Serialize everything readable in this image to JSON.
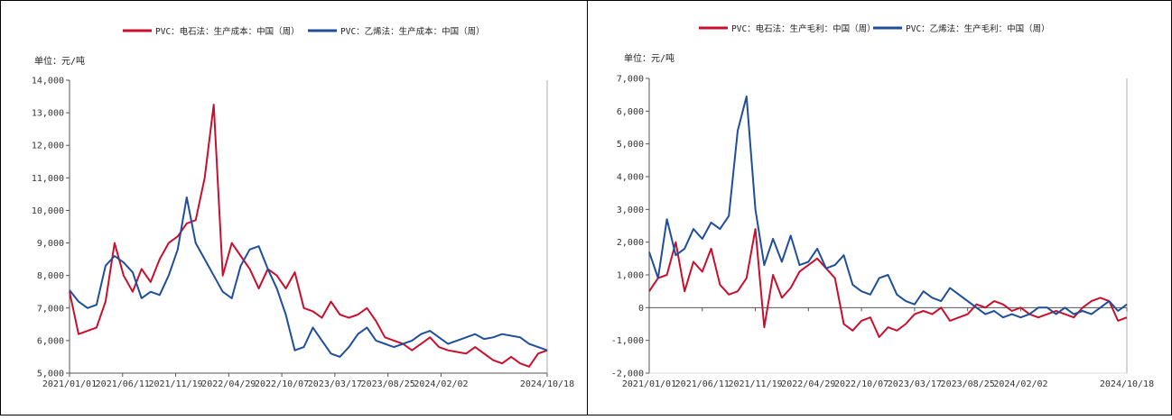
{
  "colors": {
    "red": "#C8102E",
    "blue": "#1F4E9A",
    "axis": "#555555"
  },
  "charts": [
    {
      "id": "left",
      "unit": "单位：元/吨",
      "chart_data": {
        "type": "line",
        "title": "",
        "xlabel": "",
        "ylabel": "单位：元/吨",
        "ylim": [
          5000,
          14000
        ],
        "y_ticks": [
          5000,
          6000,
          7000,
          8000,
          9000,
          10000,
          11000,
          12000,
          13000,
          14000
        ],
        "y_tick_labels": [
          "5,000",
          "6,000",
          "7,000",
          "8,000",
          "9,000",
          "10,000",
          "11,000",
          "12,000",
          "13,000",
          "14,000"
        ],
        "x_ticks": [
          "2021/01/01",
          "2021/06/11",
          "2021/11/19",
          "2022/04/29",
          "2022/10/07",
          "2023/03/17",
          "2023/08/25",
          "2024/02/02",
          "2024/10/18"
        ],
        "legend_position": "top",
        "series": [
          {
            "name": "PVC：电石法：生产成本：中国（周）",
            "color": "red",
            "values": [
              7500,
              6200,
              6300,
              6400,
              7200,
              9000,
              8000,
              7500,
              8200,
              7800,
              8500,
              9000,
              9200,
              9600,
              9700,
              11000,
              13250,
              8000,
              9000,
              8600,
              8200,
              7600,
              8200,
              8000,
              7600,
              8100,
              7000,
              6900,
              6700,
              7200,
              6800,
              6700,
              6800,
              7000,
              6600,
              6100,
              6000,
              5900,
              5700,
              5900,
              6100,
              5800,
              5700,
              5650,
              5600,
              5800,
              5600,
              5400,
              5300,
              5500,
              5300,
              5200,
              5600,
              5700
            ]
          },
          {
            "name": "PVC：乙烯法：生产成本：中国（周）",
            "color": "blue",
            "values": [
              7550,
              7200,
              7000,
              7100,
              8300,
              8600,
              8400,
              8100,
              7300,
              7500,
              7400,
              8000,
              8800,
              10400,
              9000,
              8500,
              8000,
              7500,
              7300,
              8300,
              8800,
              8900,
              8200,
              7600,
              6800,
              5700,
              5800,
              6400,
              6000,
              5600,
              5500,
              5800,
              6200,
              6400,
              6000,
              5900,
              5800,
              5900,
              6000,
              6200,
              6300,
              6100,
              5900,
              6000,
              6100,
              6200,
              6050,
              6100,
              6200,
              6150,
              6100,
              5900,
              5800,
              5700
            ]
          }
        ]
      }
    },
    {
      "id": "right",
      "unit": "单位：元/吨",
      "chart_data": {
        "type": "line",
        "title": "",
        "xlabel": "",
        "ylabel": "单位：元/吨",
        "ylim": [
          -2000,
          7000
        ],
        "y_ticks": [
          -2000,
          -1000,
          0,
          1000,
          2000,
          3000,
          4000,
          5000,
          6000,
          7000
        ],
        "y_tick_labels": [
          "-2,000",
          "-1,000",
          "0",
          "1,000",
          "2,000",
          "3,000",
          "4,000",
          "5,000",
          "6,000",
          "7,000"
        ],
        "x_ticks": [
          "2021/01/01",
          "2021/06/11",
          "2021/11/19",
          "2022/04/29",
          "2022/10/07",
          "2023/03/17",
          "2023/08/25",
          "2024/02/02",
          "2024/10/18"
        ],
        "legend_position": "top",
        "series": [
          {
            "name": "PVC：电石法：生产毛利：中国（周）",
            "color": "red",
            "values": [
              500,
              900,
              1000,
              2000,
              500,
              1400,
              1100,
              1800,
              700,
              400,
              500,
              900,
              2400,
              -600,
              1000,
              300,
              600,
              1100,
              1300,
              1500,
              1200,
              900,
              -500,
              -700,
              -400,
              -300,
              -900,
              -600,
              -700,
              -500,
              -200,
              -100,
              -200,
              0,
              -400,
              -300,
              -200,
              100,
              0,
              200,
              100,
              -100,
              0,
              -200,
              -300,
              -200,
              -100,
              -200,
              -300,
              0,
              200,
              300,
              200,
              -400,
              -300
            ]
          },
          {
            "name": "PVC：乙烯法：生产毛利：中国（周）",
            "color": "blue",
            "values": [
              1700,
              900,
              2700,
              1600,
              1800,
              2400,
              2100,
              2600,
              2400,
              2800,
              5400,
              6450,
              3000,
              1300,
              2100,
              1400,
              2200,
              1300,
              1400,
              1800,
              1200,
              1300,
              1600,
              700,
              500,
              400,
              900,
              1000,
              400,
              200,
              100,
              500,
              300,
              200,
              600,
              400,
              200,
              0,
              -200,
              -100,
              -300,
              -200,
              -300,
              -200,
              0,
              0,
              -200,
              0,
              -200,
              -100,
              -200,
              0,
              200,
              -100,
              100
            ]
          }
        ]
      }
    }
  ]
}
